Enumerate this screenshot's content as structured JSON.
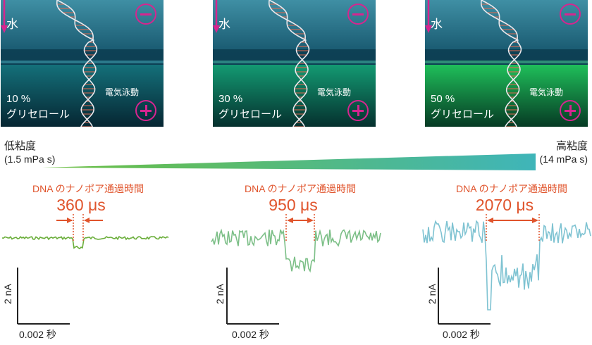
{
  "panels": [
    {
      "water_label": "水",
      "glycerol_pct": "10 %",
      "glycerol_label": "グリセロール",
      "electrophoresis_label": "電気泳動",
      "bottom_color": "#14707a"
    },
    {
      "water_label": "水",
      "glycerol_pct": "30 %",
      "glycerol_label": "グリセロール",
      "electrophoresis_label": "電気泳動",
      "bottom_color": "#139a72"
    },
    {
      "water_label": "水",
      "glycerol_pct": "50 %",
      "glycerol_label": "グリセロール",
      "electrophoresis_label": "電気泳動",
      "bottom_color": "#1fbf5a"
    }
  ],
  "viscosity": {
    "low_label": "低粘度",
    "low_value": "(1.5 mPa s)",
    "high_label": "高粘度",
    "high_value": "(14 mPa s)",
    "gradient_from": "#6cbf3f",
    "gradient_to": "#3fb5b9"
  },
  "traces": [
    {
      "title": "DNA のナノポア通過時間",
      "time": "360 μs",
      "color": "#6aae3a",
      "scale_y": "2 nA",
      "scale_x": "0.002 秒"
    },
    {
      "title": "DNA のナノポア通過時間",
      "time": "950 μs",
      "color": "#7cbf87",
      "scale_y": "2 nA",
      "scale_x": "0.002 秒"
    },
    {
      "title": "DNA のナノポア通過時間",
      "time": "2070 μs",
      "color": "#7fc3d2",
      "scale_y": "2 nA",
      "scale_x": "0.002 秒"
    }
  ],
  "colors": {
    "sign": "#d6258f",
    "annotation": "#e0542c",
    "dna_backbone": "#e9e9ee",
    "dna_base": "#e06a50"
  }
}
